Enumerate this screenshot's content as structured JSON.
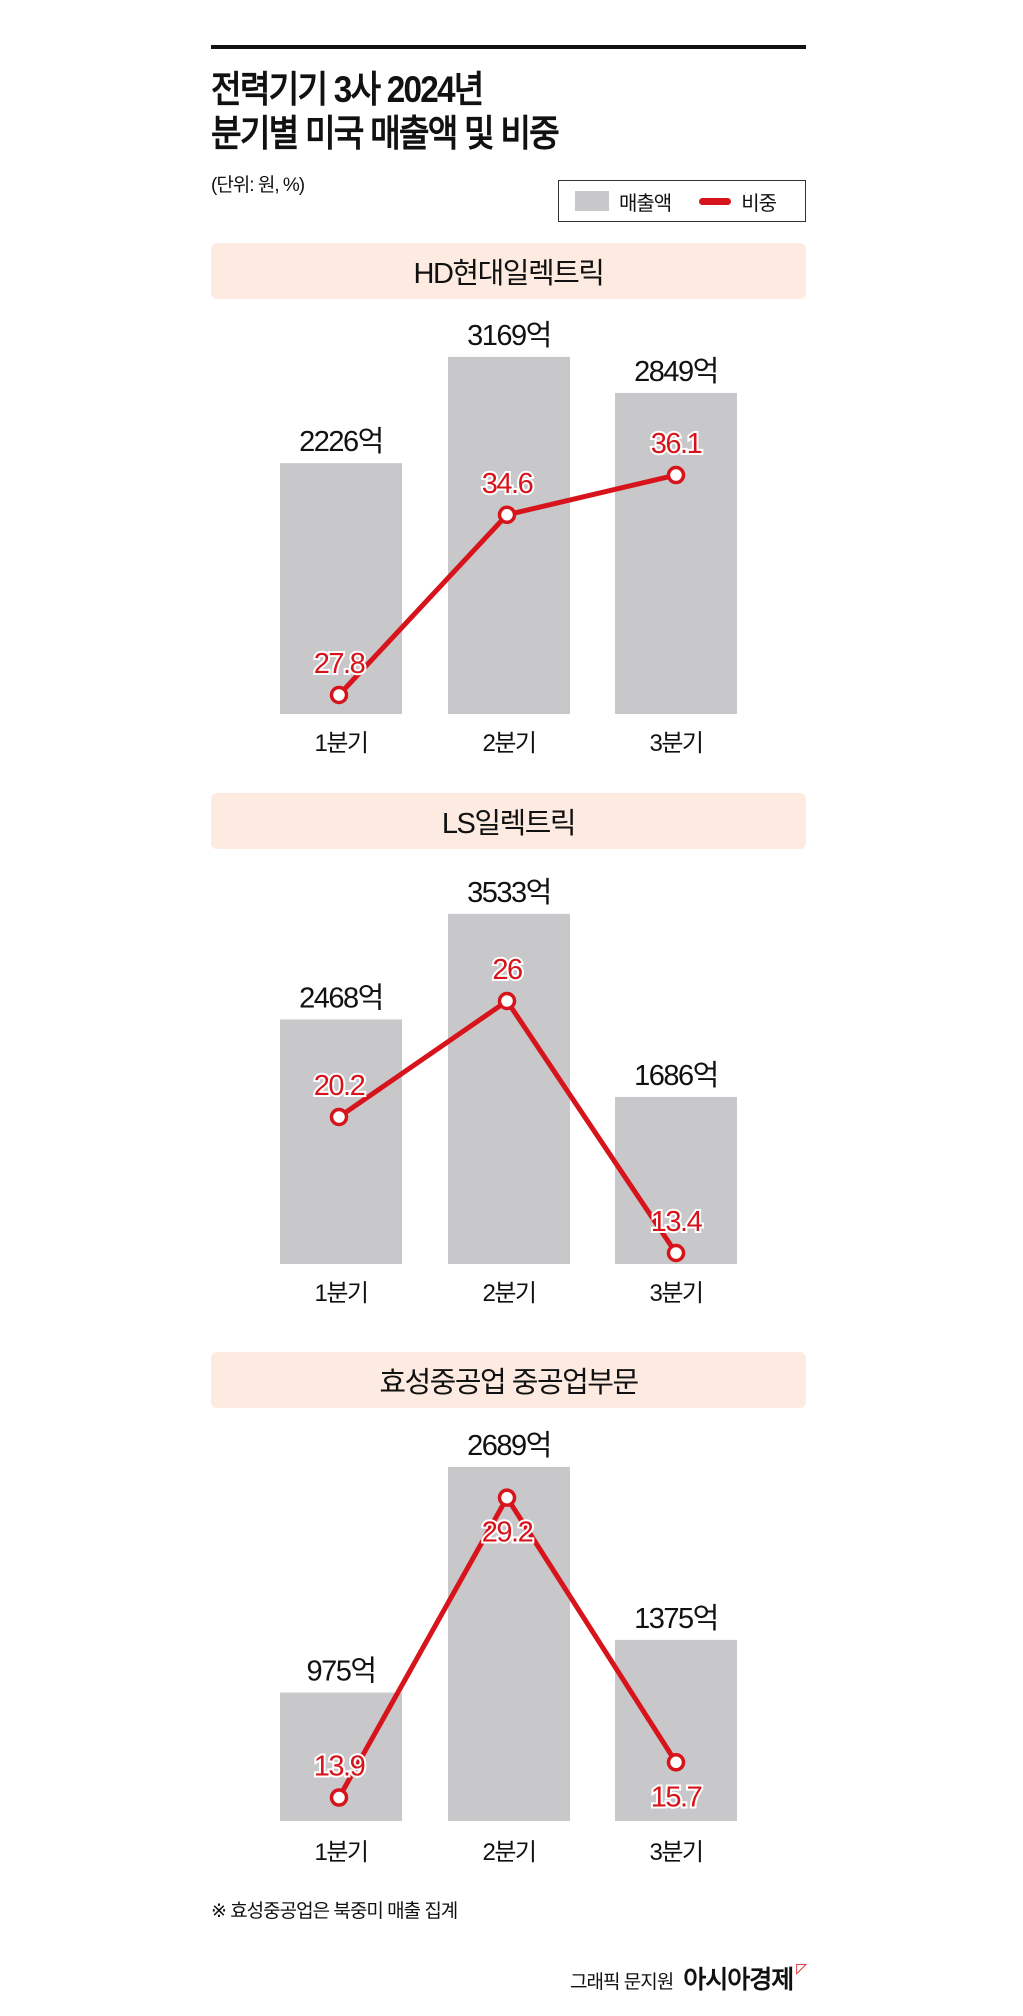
{
  "title_line1": "전력기기 3사 2024년",
  "title_line2": "분기별 미국 매출액 및 비중",
  "unit": "(단위: 원, %)",
  "legend": {
    "bar": "매출액",
    "line": "비중"
  },
  "colors": {
    "bar": "#c8c7c9",
    "line": "#d7141b",
    "header_bg": "#fdebe2"
  },
  "chart_data": [
    {
      "type": "bar+line",
      "title": "HD현대일렉트릭",
      "categories": [
        "1분기",
        "2분기",
        "3분기"
      ],
      "series": [
        {
          "name": "매출액",
          "values": [
            2226,
            3169,
            2849
          ],
          "labels": [
            "2226억",
            "3169억",
            "2849억"
          ]
        },
        {
          "name": "비중",
          "values": [
            27.8,
            34.6,
            36.1
          ],
          "labels": [
            "27.8",
            "34.6",
            "36.1"
          ]
        }
      ]
    },
    {
      "type": "bar+line",
      "title": "LS일렉트릭",
      "categories": [
        "1분기",
        "2분기",
        "3분기"
      ],
      "series": [
        {
          "name": "매출액",
          "values": [
            2468,
            3533,
            1686
          ],
          "labels": [
            "2468억",
            "3533억",
            "1686억"
          ]
        },
        {
          "name": "비중",
          "values": [
            20.2,
            26,
            13.4
          ],
          "labels": [
            "20.2",
            "26",
            "13.4"
          ]
        }
      ]
    },
    {
      "type": "bar+line",
      "title": "효성중공업 중공업부문",
      "categories": [
        "1분기",
        "2분기",
        "3분기"
      ],
      "series": [
        {
          "name": "매출액",
          "values": [
            975,
            2689,
            1375
          ],
          "labels": [
            "975억",
            "2689억",
            "1375억"
          ]
        },
        {
          "name": "비중",
          "values": [
            13.9,
            29.2,
            15.7
          ],
          "labels": [
            "13.9",
            "29.2",
            "15.7"
          ]
        }
      ]
    }
  ],
  "footnote": "※ 효성중공업은 북중미 매출 집계",
  "credit": "그래픽 문지원",
  "brand": "아시아경제"
}
